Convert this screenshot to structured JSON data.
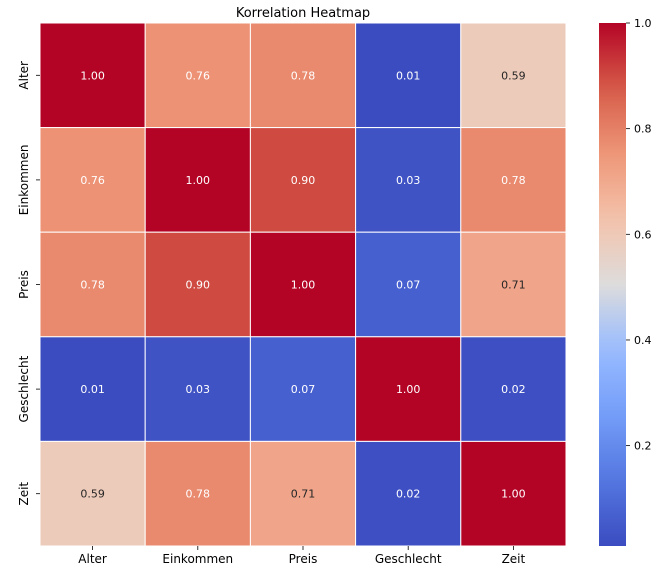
{
  "chart_data": {
    "type": "heatmap",
    "title": "Korrelation Heatmap",
    "xlabel": "",
    "ylabel": "",
    "x_categories": [
      "Alter",
      "Einkommen",
      "Preis",
      "Geschlecht",
      "Zeit"
    ],
    "y_categories": [
      "Alter",
      "Einkommen",
      "Preis",
      "Geschlecht",
      "Zeit"
    ],
    "values": [
      [
        1.0,
        0.76,
        0.78,
        0.01,
        0.59
      ],
      [
        0.76,
        1.0,
        0.9,
        0.03,
        0.78
      ],
      [
        0.78,
        0.9,
        1.0,
        0.07,
        0.71
      ],
      [
        0.01,
        0.03,
        0.07,
        1.0,
        0.02
      ],
      [
        0.59,
        0.78,
        0.71,
        0.02,
        1.0
      ]
    ],
    "cell_labels": [
      [
        "1.00",
        "0.76",
        "0.78",
        "0.01",
        "0.59"
      ],
      [
        "0.76",
        "1.00",
        "0.90",
        "0.03",
        "0.78"
      ],
      [
        "0.78",
        "0.90",
        "1.00",
        "0.07",
        "0.71"
      ],
      [
        "0.01",
        "0.03",
        "0.07",
        "1.00",
        "0.02"
      ],
      [
        "0.59",
        "0.78",
        "0.71",
        "0.02",
        "1.00"
      ]
    ],
    "colormap": "coolwarm",
    "value_range": [
      0.01,
      1.0
    ],
    "colorbar": {
      "ticks": [
        0.2,
        0.4,
        0.6,
        0.8,
        1.0
      ],
      "tick_labels": [
        "0.2",
        "0.4",
        "0.6",
        "0.8",
        "1.0"
      ]
    },
    "grid": false,
    "legend": "colorbar-right"
  }
}
